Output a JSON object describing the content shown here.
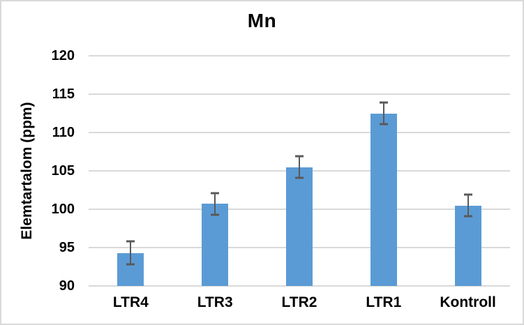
{
  "chart_data": {
    "type": "bar",
    "title": "Mn",
    "ylabel": "Elemtartalom (ppm)",
    "xlabel": "",
    "categories": [
      "LTR4",
      "LTR3",
      "LTR2",
      "LTR1",
      "Kontroll"
    ],
    "values": [
      94.3,
      100.7,
      105.5,
      112.5,
      100.5
    ],
    "error_bars": [
      1.5,
      1.4,
      1.4,
      1.4,
      1.4
    ],
    "ylim": [
      90,
      120
    ],
    "ytick_step": 5,
    "ytick_labels": [
      "90",
      "95",
      "100",
      "105",
      "110",
      "115",
      "120"
    ],
    "grid": true,
    "legend": "none",
    "colors": {
      "bar": "#5B9BD5",
      "error_bar": "#595959",
      "gridline": "#D9D9D9",
      "axis_line": "#D9D9D9",
      "text": "#000000",
      "chart_border": "#D9D9D9",
      "background": "#FFFFFF"
    }
  }
}
